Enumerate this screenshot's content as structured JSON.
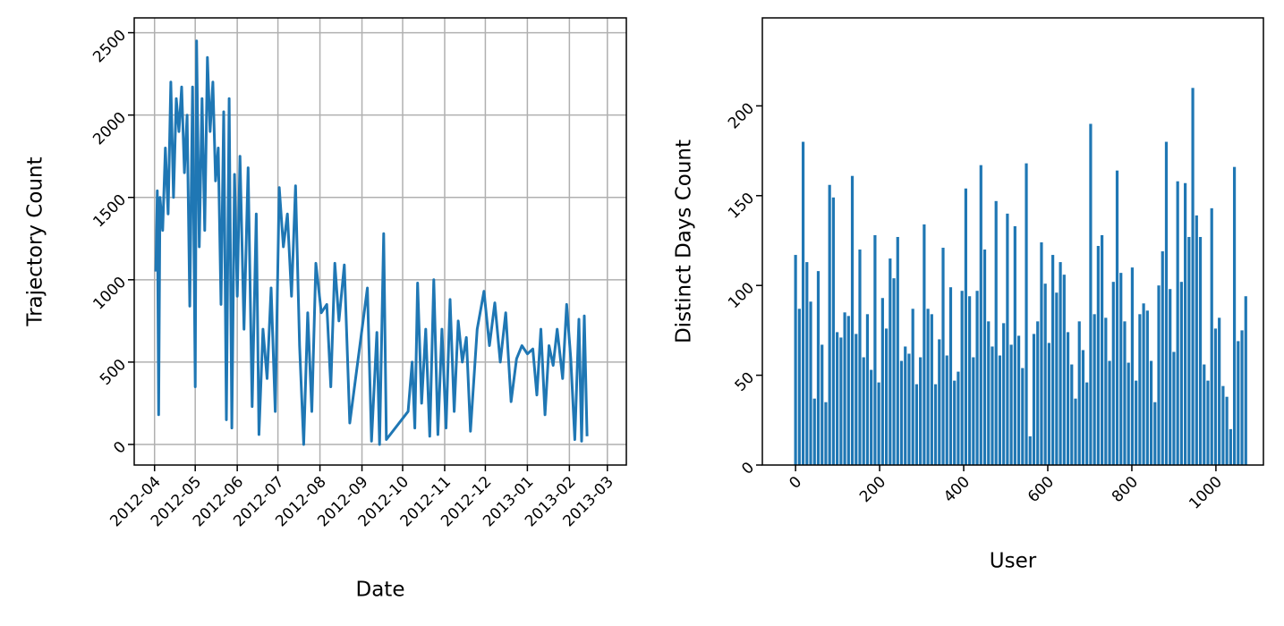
{
  "chart_data": [
    {
      "type": "line",
      "xlabel": "Date",
      "ylabel": "Trajectory Count",
      "color": "#1f77b4",
      "grid": true,
      "xlim": [
        "2012-03-17",
        "2013-03-15"
      ],
      "xticks": [
        {
          "value": "2012-04-01",
          "label": "2012-04"
        },
        {
          "value": "2012-05-01",
          "label": "2012-05"
        },
        {
          "value": "2012-06-01",
          "label": "2012-06"
        },
        {
          "value": "2012-07-01",
          "label": "2012-07"
        },
        {
          "value": "2012-08-01",
          "label": "2012-08"
        },
        {
          "value": "2012-09-01",
          "label": "2012-09"
        },
        {
          "value": "2012-10-01",
          "label": "2012-10"
        },
        {
          "value": "2012-11-01",
          "label": "2012-11"
        },
        {
          "value": "2012-12-01",
          "label": "2012-12"
        },
        {
          "value": "2013-01-01",
          "label": "2013-01"
        },
        {
          "value": "2013-02-01",
          "label": "2013-02"
        },
        {
          "value": "2013-03-01",
          "label": "2013-03"
        }
      ],
      "ylim": [
        -125,
        2590
      ],
      "yticks": [
        0,
        500,
        1000,
        1500,
        2000,
        2500
      ],
      "x": [
        "2012-04-02",
        "2012-04-03",
        "2012-04-04",
        "2012-04-05",
        "2012-04-07",
        "2012-04-09",
        "2012-04-11",
        "2012-04-13",
        "2012-04-15",
        "2012-04-17",
        "2012-04-19",
        "2012-04-21",
        "2012-04-23",
        "2012-04-25",
        "2012-04-27",
        "2012-04-29",
        "2012-05-01",
        "2012-05-02",
        "2012-05-04",
        "2012-05-06",
        "2012-05-08",
        "2012-05-10",
        "2012-05-12",
        "2012-05-14",
        "2012-05-16",
        "2012-05-18",
        "2012-05-20",
        "2012-05-22",
        "2012-05-24",
        "2012-05-26",
        "2012-05-28",
        "2012-05-30",
        "2012-06-01",
        "2012-06-03",
        "2012-06-06",
        "2012-06-09",
        "2012-06-12",
        "2012-06-15",
        "2012-06-17",
        "2012-06-20",
        "2012-06-23",
        "2012-06-26",
        "2012-06-29",
        "2012-07-02",
        "2012-07-05",
        "2012-07-08",
        "2012-07-11",
        "2012-07-14",
        "2012-07-17",
        "2012-07-20",
        "2012-07-23",
        "2012-07-26",
        "2012-07-29",
        "2012-08-02",
        "2012-08-06",
        "2012-08-09",
        "2012-08-12",
        "2012-08-15",
        "2012-08-19",
        "2012-08-23",
        "2012-09-05",
        "2012-09-08",
        "2012-09-12",
        "2012-09-14",
        "2012-09-17",
        "2012-09-19",
        "2012-10-05",
        "2012-10-08",
        "2012-10-10",
        "2012-10-12",
        "2012-10-15",
        "2012-10-18",
        "2012-10-21",
        "2012-10-24",
        "2012-10-27",
        "2012-10-30",
        "2012-11-02",
        "2012-11-05",
        "2012-11-08",
        "2012-11-11",
        "2012-11-14",
        "2012-11-17",
        "2012-11-20",
        "2012-11-25",
        "2012-11-30",
        "2012-12-04",
        "2012-12-08",
        "2012-12-12",
        "2012-12-16",
        "2012-12-20",
        "2012-12-24",
        "2012-12-28",
        "2013-01-01",
        "2013-01-05",
        "2013-01-08",
        "2013-01-11",
        "2013-01-14",
        "2013-01-17",
        "2013-01-20",
        "2013-01-23",
        "2013-01-27",
        "2013-01-30",
        "2013-02-02",
        "2013-02-05",
        "2013-02-08",
        "2013-02-10",
        "2013-02-12",
        "2013-02-14"
      ],
      "values": [
        1050,
        1540,
        180,
        1500,
        1300,
        1800,
        1400,
        2200,
        1500,
        2100,
        1900,
        2170,
        1650,
        2000,
        840,
        2170,
        350,
        2450,
        1200,
        2100,
        1300,
        2350,
        1900,
        2200,
        1600,
        1800,
        850,
        2020,
        150,
        2100,
        100,
        1640,
        900,
        1750,
        700,
        1680,
        230,
        1400,
        60,
        700,
        400,
        950,
        200,
        1560,
        1200,
        1400,
        900,
        1570,
        600,
        0,
        800,
        200,
        1100,
        800,
        850,
        350,
        1100,
        750,
        1090,
        130,
        950,
        20,
        680,
        0,
        1280,
        30,
        200,
        500,
        100,
        980,
        250,
        700,
        50,
        1000,
        60,
        700,
        100,
        880,
        200,
        750,
        500,
        650,
        80,
        700,
        930,
        600,
        860,
        500,
        800,
        260,
        520,
        600,
        550,
        580,
        300,
        700,
        180,
        600,
        480,
        700,
        400,
        850,
        520,
        30,
        760,
        20,
        780,
        50
      ]
    },
    {
      "type": "bar",
      "xlabel": "User",
      "ylabel": "Distinct Days Count",
      "color": "#1f77b4",
      "grid": false,
      "xlim": [
        -79,
        1113
      ],
      "xticks": [
        0,
        200,
        400,
        600,
        800,
        1000
      ],
      "ylim": [
        0,
        249
      ],
      "yticks": [
        0,
        50,
        100,
        150,
        200
      ],
      "x": [
        0,
        9,
        18,
        27,
        36,
        45,
        54,
        63,
        72,
        81,
        90,
        99,
        108,
        117,
        126,
        135,
        144,
        153,
        162,
        171,
        180,
        189,
        198,
        207,
        216,
        225,
        234,
        243,
        252,
        261,
        270,
        279,
        288,
        297,
        306,
        315,
        324,
        333,
        342,
        351,
        360,
        369,
        378,
        387,
        396,
        405,
        414,
        423,
        432,
        441,
        450,
        459,
        468,
        477,
        486,
        495,
        504,
        513,
        522,
        531,
        540,
        549,
        558,
        567,
        576,
        585,
        594,
        603,
        612,
        621,
        630,
        639,
        648,
        657,
        666,
        675,
        684,
        693,
        702,
        711,
        720,
        729,
        738,
        747,
        756,
        765,
        774,
        783,
        792,
        801,
        810,
        819,
        828,
        837,
        846,
        855,
        864,
        873,
        882,
        891,
        900,
        909,
        918,
        927,
        936,
        945,
        954,
        963,
        972,
        981,
        990,
        999,
        1008,
        1017,
        1026,
        1035,
        1044,
        1053,
        1062,
        1071
      ],
      "values": [
        117,
        87,
        180,
        113,
        91,
        37,
        108,
        67,
        35,
        156,
        149,
        74,
        71,
        85,
        83,
        161,
        73,
        120,
        60,
        84,
        53,
        128,
        46,
        93,
        76,
        115,
        104,
        127,
        58,
        66,
        62,
        87,
        45,
        60,
        134,
        87,
        84,
        45,
        70,
        121,
        61,
        99,
        47,
        52,
        97,
        154,
        94,
        60,
        97,
        167,
        120,
        80,
        66,
        147,
        61,
        79,
        140,
        67,
        133,
        72,
        54,
        168,
        16,
        73,
        80,
        124,
        101,
        68,
        117,
        96,
        113,
        106,
        74,
        56,
        37,
        80,
        64,
        46,
        190,
        84,
        122,
        128,
        82,
        58,
        102,
        164,
        107,
        80,
        57,
        110,
        47,
        84,
        90,
        86,
        58,
        35,
        100,
        119,
        180,
        98,
        63,
        158,
        102,
        157,
        127,
        210,
        139,
        127,
        56,
        47,
        143,
        76,
        82,
        44,
        38,
        20,
        166,
        69,
        75,
        94
      ]
    }
  ]
}
